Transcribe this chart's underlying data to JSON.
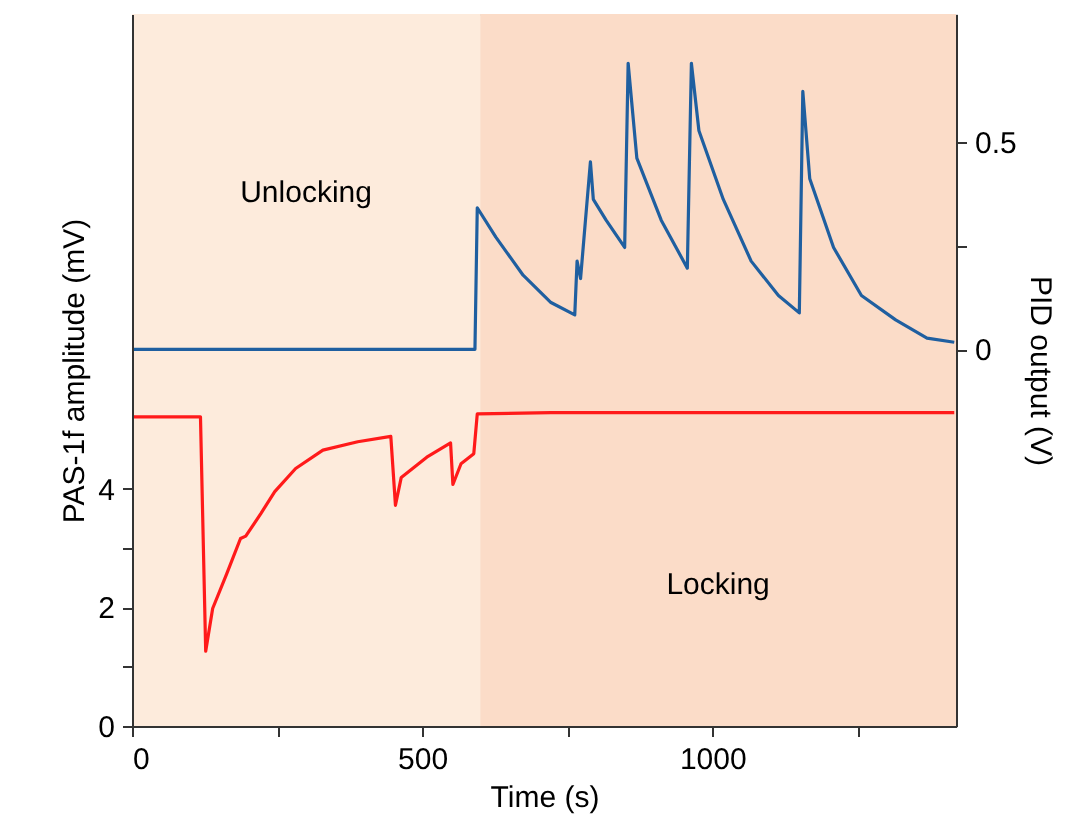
{
  "chart_data": {
    "type": "line",
    "xlabel": "Time (s)",
    "ylabel": "PAS-1f amplitude (mV)",
    "y2label": "PID output (V)",
    "xlim": [
      0,
      1420
    ],
    "xticks": [
      0,
      {
        "value": 250,
        "label": null
      },
      500,
      {
        "value": 750,
        "label": null
      },
      1000,
      {
        "value": 1250,
        "label": null
      }
    ],
    "ylim": [
      0,
      12
    ],
    "yticks": [
      0,
      {
        "value": 1,
        "label": null
      },
      2,
      {
        "value": 3,
        "label": null
      },
      4
    ],
    "y2lim": [
      -0.91,
      0.81
    ],
    "y2ticks": [
      0,
      {
        "value": 0.25,
        "label": null
      },
      0.5
    ],
    "grid": false,
    "marker": "none",
    "line_style": "solid",
    "bands": [
      {
        "axis": "x",
        "from": 0,
        "to": 600,
        "label": "Unlocking",
        "color": "#fdebdc"
      },
      {
        "axis": "x",
        "from": 600,
        "to": 1420,
        "label": "Locking",
        "color": "#fbdcc8"
      }
    ],
    "series": [
      {
        "color": "#ff1a1a",
        "x": [
          0,
          118,
          127,
          139,
          163,
          187,
          196,
          222,
          246,
          282,
          329,
          389,
          446,
          454,
          464,
          508,
          549,
          553,
          567,
          589,
          595,
          722,
          1417
        ],
        "values": [
          5.21,
          5.21,
          1.26,
          1.98,
          2.56,
          3.16,
          3.2,
          3.58,
          3.95,
          4.34,
          4.65,
          4.79,
          4.88,
          3.72,
          4.19,
          4.53,
          4.77,
          4.07,
          4.42,
          4.59,
          5.26,
          5.28,
          5.28
        ]
      },
      {
        "color": "#1f5fa0",
        "axis": "y2",
        "x": [
          0,
          591,
          595,
          627,
          674,
          722,
          763,
          767,
          773,
          781,
          790,
          795,
          817,
          849,
          855,
          870,
          912,
          957,
          964,
          977,
          1019,
          1067,
          1114,
          1150,
          1156,
          1168,
          1209,
          1257,
          1316,
          1370,
          1417
        ],
        "values": [
          0,
          0,
          0.342,
          0.271,
          0.179,
          0.113,
          0.083,
          0.213,
          0.171,
          0.304,
          0.453,
          0.362,
          0.312,
          0.246,
          0.691,
          0.462,
          0.312,
          0.196,
          0.691,
          0.528,
          0.362,
          0.213,
          0.13,
          0.088,
          0.623,
          0.412,
          0.246,
          0.13,
          0.071,
          0.027,
          0.017
        ]
      }
    ]
  }
}
